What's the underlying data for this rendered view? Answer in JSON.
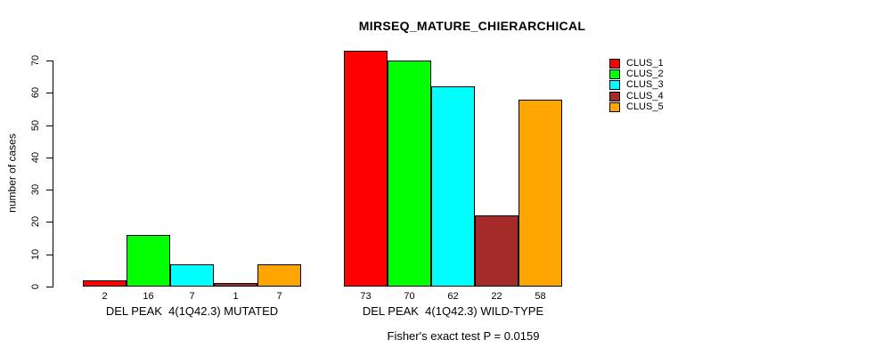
{
  "chart_data": {
    "type": "bar",
    "title": "MIRSEQ_MATURE_CHIERARCHICAL",
    "ylabel": "number of cases",
    "xlabel": "",
    "axis_range": [
      0,
      70
    ],
    "yticks": [
      "0",
      "10",
      "20",
      "30",
      "40",
      "50",
      "60",
      "70"
    ],
    "grid": false,
    "legend_position": "topright",
    "groups": [
      {
        "label": "DEL PEAK  4(1Q42.3) MUTATED",
        "values": [
          2,
          16,
          7,
          1,
          7
        ],
        "bar_labels": [
          "2",
          "16",
          "7",
          "1",
          "7"
        ]
      },
      {
        "label": "DEL PEAK  4(1Q42.3) WILD-TYPE",
        "values": [
          73,
          70,
          62,
          22,
          58
        ],
        "bar_labels": [
          "73",
          "70",
          "62",
          "22",
          "58"
        ]
      }
    ],
    "series_colors": [
      "#FF0000",
      "#00FF00",
      "#00FFFF",
      "#A52A2A",
      "#FFA500"
    ],
    "legend": [
      {
        "label": "CLUS_1",
        "color": "#FF0000"
      },
      {
        "label": "CLUS_2",
        "color": "#00FF00"
      },
      {
        "label": "CLUS_3",
        "color": "#00FFFF"
      },
      {
        "label": "CLUS_4",
        "color": "#A52A2A"
      },
      {
        "label": "CLUS_5",
        "color": "#FFA500"
      }
    ],
    "annotation": "Fisher's exact test P = 0.0159",
    "text_color": "#000000",
    "background_color": "#FFFFFF"
  }
}
